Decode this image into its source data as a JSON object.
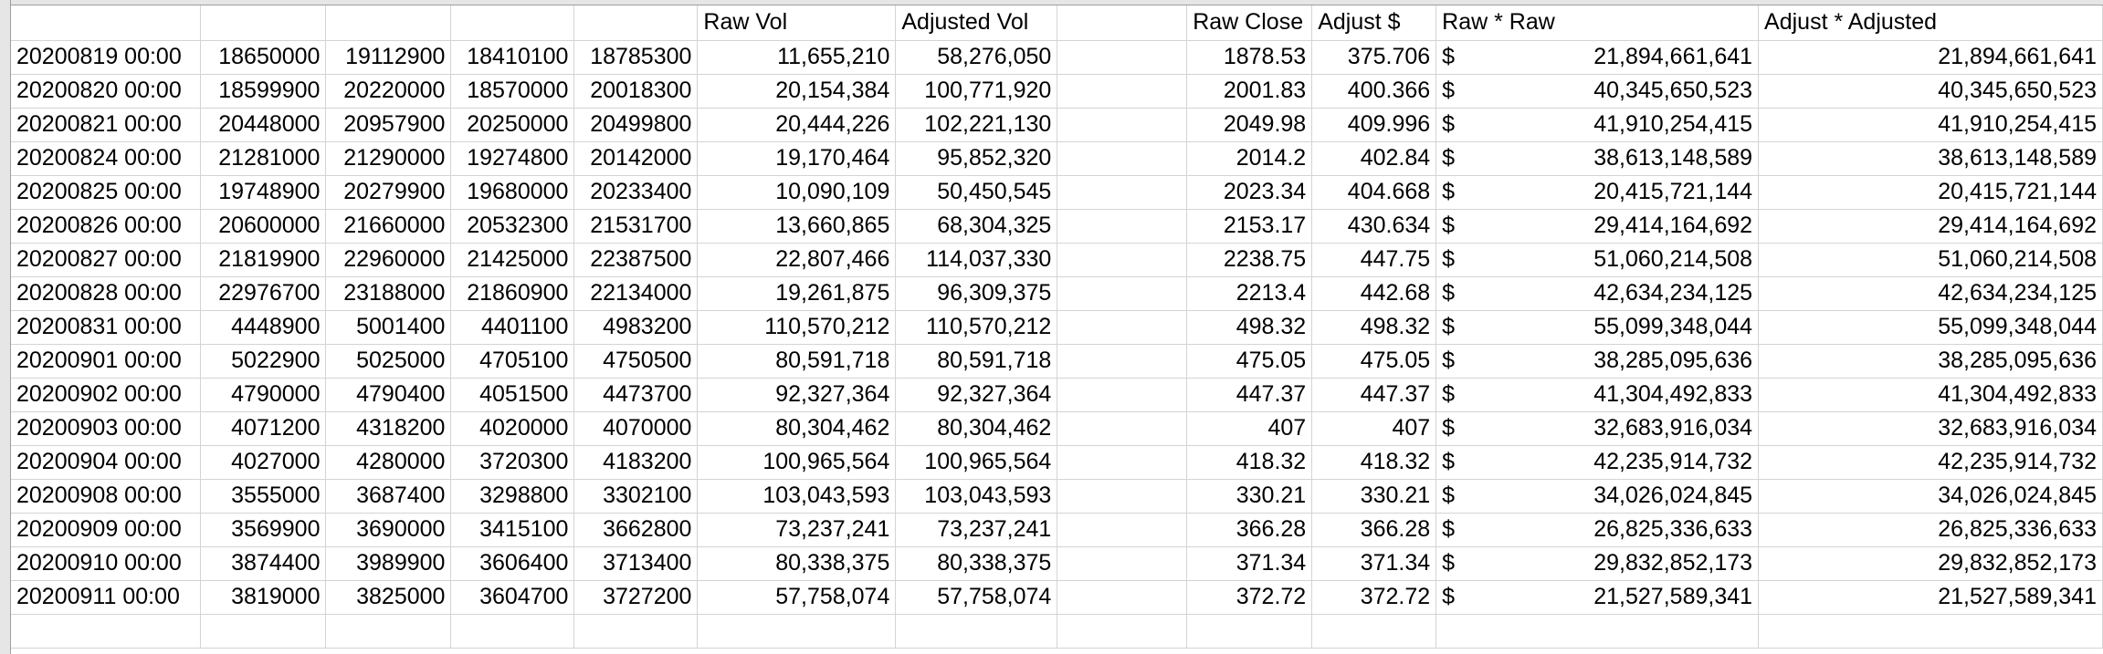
{
  "headers": [
    "",
    "",
    "",
    "",
    "",
    "Raw Vol",
    "Adjusted Vol",
    "",
    "Raw Close",
    "Adjust $",
    "Raw * Raw",
    "Adjust * Adjusted"
  ],
  "currency_symbol": "$",
  "rows": [
    [
      "20200819 00:00",
      "18650000",
      "19112900",
      "18410100",
      "18785300",
      "11,655,210",
      "58,276,050",
      "",
      "1878.53",
      "375.706",
      "21,894,661,641",
      "21,894,661,641"
    ],
    [
      "20200820 00:00",
      "18599900",
      "20220000",
      "18570000",
      "20018300",
      "20,154,384",
      "100,771,920",
      "",
      "2001.83",
      "400.366",
      "40,345,650,523",
      "40,345,650,523"
    ],
    [
      "20200821 00:00",
      "20448000",
      "20957900",
      "20250000",
      "20499800",
      "20,444,226",
      "102,221,130",
      "",
      "2049.98",
      "409.996",
      "41,910,254,415",
      "41,910,254,415"
    ],
    [
      "20200824 00:00",
      "21281000",
      "21290000",
      "19274800",
      "20142000",
      "19,170,464",
      "95,852,320",
      "",
      "2014.2",
      "402.84",
      "38,613,148,589",
      "38,613,148,589"
    ],
    [
      "20200825 00:00",
      "19748900",
      "20279900",
      "19680000",
      "20233400",
      "10,090,109",
      "50,450,545",
      "",
      "2023.34",
      "404.668",
      "20,415,721,144",
      "20,415,721,144"
    ],
    [
      "20200826 00:00",
      "20600000",
      "21660000",
      "20532300",
      "21531700",
      "13,660,865",
      "68,304,325",
      "",
      "2153.17",
      "430.634",
      "29,414,164,692",
      "29,414,164,692"
    ],
    [
      "20200827 00:00",
      "21819900",
      "22960000",
      "21425000",
      "22387500",
      "22,807,466",
      "114,037,330",
      "",
      "2238.75",
      "447.75",
      "51,060,214,508",
      "51,060,214,508"
    ],
    [
      "20200828 00:00",
      "22976700",
      "23188000",
      "21860900",
      "22134000",
      "19,261,875",
      "96,309,375",
      "",
      "2213.4",
      "442.68",
      "42,634,234,125",
      "42,634,234,125"
    ],
    [
      "20200831 00:00",
      "4448900",
      "5001400",
      "4401100",
      "4983200",
      "110,570,212",
      "110,570,212",
      "",
      "498.32",
      "498.32",
      "55,099,348,044",
      "55,099,348,044"
    ],
    [
      "20200901 00:00",
      "5022900",
      "5025000",
      "4705100",
      "4750500",
      "80,591,718",
      "80,591,718",
      "",
      "475.05",
      "475.05",
      "38,285,095,636",
      "38,285,095,636"
    ],
    [
      "20200902 00:00",
      "4790000",
      "4790400",
      "4051500",
      "4473700",
      "92,327,364",
      "92,327,364",
      "",
      "447.37",
      "447.37",
      "41,304,492,833",
      "41,304,492,833"
    ],
    [
      "20200903 00:00",
      "4071200",
      "4318200",
      "4020000",
      "4070000",
      "80,304,462",
      "80,304,462",
      "",
      "407",
      "407",
      "32,683,916,034",
      "32,683,916,034"
    ],
    [
      "20200904 00:00",
      "4027000",
      "4280000",
      "3720300",
      "4183200",
      "100,965,564",
      "100,965,564",
      "",
      "418.32",
      "418.32",
      "42,235,914,732",
      "42,235,914,732"
    ],
    [
      "20200908 00:00",
      "3555000",
      "3687400",
      "3298800",
      "3302100",
      "103,043,593",
      "103,043,593",
      "",
      "330.21",
      "330.21",
      "34,026,024,845",
      "34,026,024,845"
    ],
    [
      "20200909 00:00",
      "3569900",
      "3690000",
      "3415100",
      "3662800",
      "73,237,241",
      "73,237,241",
      "",
      "366.28",
      "366.28",
      "26,825,336,633",
      "26,825,336,633"
    ],
    [
      "20200910 00:00",
      "3874400",
      "3989900",
      "3606400",
      "3713400",
      "80,338,375",
      "80,338,375",
      "",
      "371.34",
      "371.34",
      "29,832,852,173",
      "29,832,852,173"
    ],
    [
      "20200911 00:00",
      "3819000",
      "3825000",
      "3604700",
      "3727200",
      "57,758,074",
      "57,758,074",
      "",
      "372.72",
      "372.72",
      "21,527,589,341",
      "21,527,589,341"
    ]
  ]
}
